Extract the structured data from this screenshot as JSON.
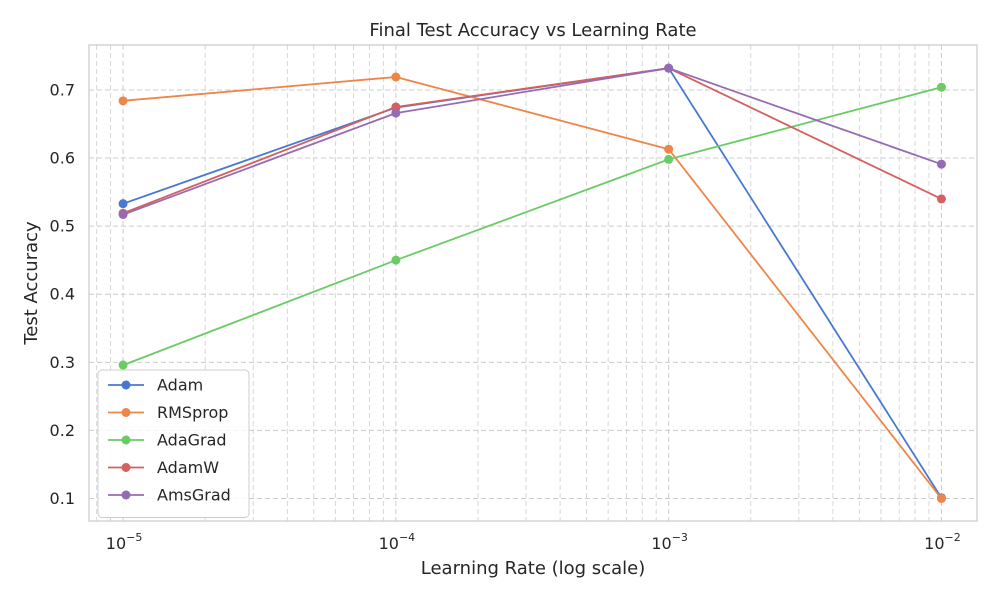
{
  "chart_data": {
    "type": "line",
    "title": "Final Test Accuracy vs Learning Rate",
    "xlabel": "Learning Rate (log scale)",
    "ylabel": "Test Accuracy",
    "x_scale": "log",
    "x": [
      1e-05,
      0.0001,
      0.001,
      0.01
    ],
    "x_tick_labels": [
      {
        "base": "10",
        "exp": "−5"
      },
      {
        "base": "10",
        "exp": "−4"
      },
      {
        "base": "10",
        "exp": "−3"
      },
      {
        "base": "10",
        "exp": "−2"
      }
    ],
    "xlim": [
      7.5e-06,
      0.0135
    ],
    "ylim": [
      0.067,
      0.766
    ],
    "y_ticks": [
      "0.1",
      "0.2",
      "0.3",
      "0.4",
      "0.5",
      "0.6",
      "0.7"
    ],
    "grid": true,
    "legend_position": "lower-left",
    "series": [
      {
        "name": "Adam",
        "color": "#4878d0",
        "values": [
          0.533,
          0.674,
          0.732,
          0.101
        ]
      },
      {
        "name": "RMSprop",
        "color": "#ee854a",
        "values": [
          0.684,
          0.719,
          0.613,
          0.1
        ]
      },
      {
        "name": "AdaGrad",
        "color": "#6acc64",
        "values": [
          0.296,
          0.45,
          0.598,
          0.704
        ]
      },
      {
        "name": "AdamW",
        "color": "#d65f5f",
        "values": [
          0.519,
          0.675,
          0.732,
          0.54
        ]
      },
      {
        "name": "AmsGrad",
        "color": "#956cb4",
        "values": [
          0.517,
          0.666,
          0.732,
          0.591
        ]
      }
    ]
  }
}
